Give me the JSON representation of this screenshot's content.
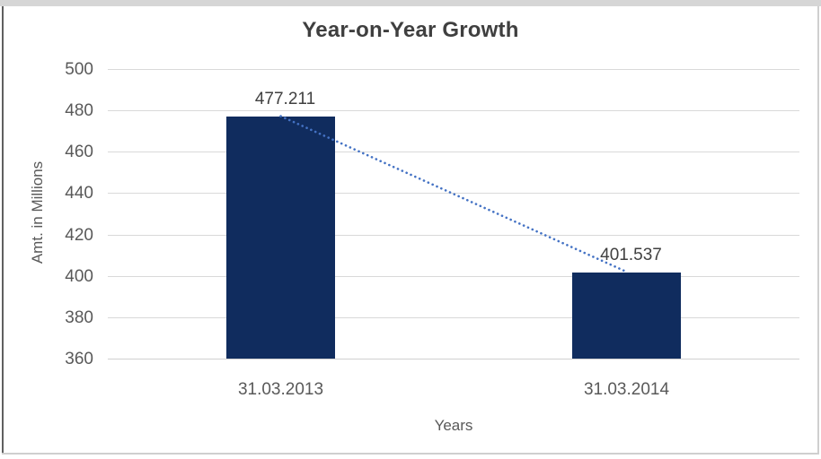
{
  "window": {
    "background": "#ffffff",
    "frame_color": "#d6d6d6"
  },
  "chart_data": {
    "type": "bar",
    "title": "Year-on-Year Growth",
    "xlabel": "Years",
    "ylabel": "Amt. in Millions",
    "categories": [
      "31.03.2013",
      "31.03.2014"
    ],
    "values": [
      477.211,
      401.537
    ],
    "data_labels": [
      "477.211",
      "401.537"
    ],
    "ylim": [
      360,
      500
    ],
    "ytick_step": 20,
    "ytick_labels": [
      "500",
      "480",
      "460",
      "440",
      "420",
      "400",
      "380",
      "360"
    ],
    "grid": true,
    "legend": "none",
    "bar_color": "#102c5e",
    "trendline": {
      "style": "dotted",
      "color": "#4472c4",
      "from_value": 477.211,
      "to_value": 401.537
    },
    "title_color": "#3f3f3f",
    "axis_text_color": "#595959",
    "data_label_color": "#404040",
    "gridline_color": "#d9d9d9"
  }
}
